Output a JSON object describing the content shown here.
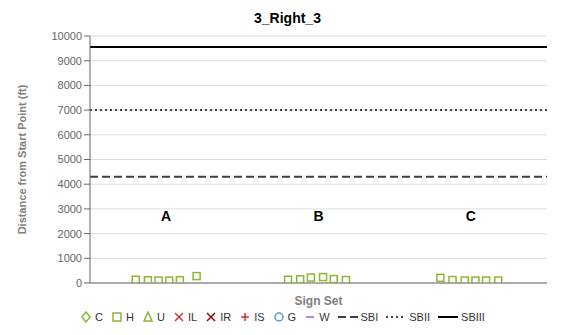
{
  "chart_data": {
    "type": "scatter",
    "title": "3_Right_3",
    "xlabel": "Sign Set",
    "ylabel": "Distance from Start Point (ft)",
    "xlim": [
      0.5,
      3.5
    ],
    "ylim": [
      0,
      10000
    ],
    "yticks": [
      0,
      1000,
      2000,
      3000,
      4000,
      5000,
      6000,
      7000,
      8000,
      9000,
      10000
    ],
    "grid": true,
    "legend": "bottom",
    "tick_labels": "y",
    "series": [
      {
        "name": "C",
        "type": "scatter",
        "marker": "diamond",
        "color": "#8DB634",
        "x": [],
        "values": []
      },
      {
        "name": "H",
        "type": "scatter",
        "marker": "square",
        "color": "#8DB634",
        "x": [
          0.8,
          0.88,
          0.95,
          1.02,
          1.09,
          1.2,
          1.8,
          1.88,
          1.95,
          2.03,
          2.1,
          2.18,
          2.8,
          2.88,
          2.96,
          3.03,
          3.1,
          3.18
        ],
        "values": [
          130,
          110,
          100,
          100,
          110,
          280,
          130,
          150,
          220,
          240,
          160,
          120,
          210,
          120,
          100,
          100,
          100,
          100
        ]
      },
      {
        "name": "U",
        "type": "scatter",
        "marker": "triangle",
        "color": "#8DB634",
        "x": [],
        "values": []
      },
      {
        "name": "IL",
        "type": "scatter",
        "marker": "x",
        "color": "#CC3333",
        "x": [],
        "values": []
      },
      {
        "name": "IR",
        "type": "scatter",
        "marker": "x",
        "color": "#990000",
        "x": [],
        "values": []
      },
      {
        "name": "IS",
        "type": "scatter",
        "marker": "plus",
        "color": "#CC3333",
        "x": [],
        "values": []
      },
      {
        "name": "G",
        "type": "scatter",
        "marker": "circle",
        "color": "#5599CC",
        "x": [],
        "values": []
      },
      {
        "name": "W",
        "type": "scatter",
        "marker": "hline",
        "color": "#9966CC",
        "x": [],
        "values": []
      },
      {
        "name": "SBI",
        "type": "hline",
        "line_style": "dashed",
        "color": "#404040",
        "values": [
          4300
        ]
      },
      {
        "name": "SBII",
        "type": "hline",
        "line_style": "dotted",
        "color": "#404040",
        "values": [
          7000
        ]
      },
      {
        "name": "SBIII",
        "type": "hline",
        "line_style": "solid",
        "color": "#000000",
        "values": [
          9550
        ]
      }
    ],
    "annotations": [
      {
        "text": "A",
        "x": 1.0,
        "y": 2700
      },
      {
        "text": "B",
        "x": 2.0,
        "y": 2700
      },
      {
        "text": "C",
        "x": 3.0,
        "y": 2700
      }
    ]
  }
}
